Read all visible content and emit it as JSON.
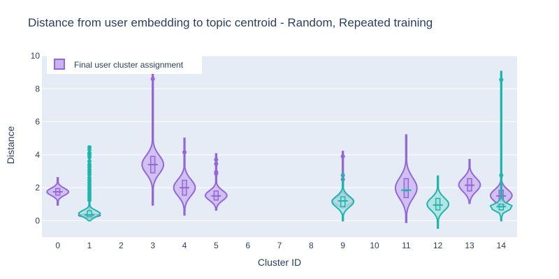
{
  "colors": {
    "plot_bg": "#e5ecf6",
    "grid": "#ffffff",
    "text": "#2a3f5f",
    "purple": "#9467d9",
    "purple_fill": "#c9b3ef",
    "teal": "#1fb5ad",
    "teal_fill": "#a6e0dc"
  },
  "chart_data": {
    "type": "violin",
    "title": "Distance from user embedding to topic centroid - Random, Repeated training",
    "xlabel": "Cluster ID",
    "ylabel": "Distance",
    "categories": [
      "0",
      "1",
      "2",
      "3",
      "4",
      "5",
      "6",
      "7",
      "8",
      "9",
      "10",
      "11",
      "12",
      "13",
      "14"
    ],
    "yticks": [
      0,
      2,
      4,
      6,
      8,
      10
    ],
    "ylim": [
      -1,
      10
    ],
    "grid": true,
    "legend": {
      "label": "Final user cluster assignment",
      "position": "top-left"
    },
    "series": [
      {
        "name": "Final user cluster assignment",
        "color": "purple",
        "violins": [
          {
            "cluster": 0,
            "min": 0.95,
            "q1": 1.55,
            "median": 1.75,
            "q3": 1.95,
            "max": 2.6,
            "outliers": []
          },
          {
            "cluster": 1,
            "min": 0.15,
            "q1": 0.25,
            "median": 0.3,
            "q3": 0.38,
            "max": 0.95,
            "outliers": []
          },
          {
            "cluster": 3,
            "min": 0.95,
            "q1": 2.9,
            "median": 3.4,
            "q3": 3.9,
            "max": 8.9,
            "outliers": [
              8.6
            ]
          },
          {
            "cluster": 4,
            "min": 0.35,
            "q1": 1.55,
            "median": 2.0,
            "q3": 2.45,
            "max": 5.0,
            "outliers": [
              4.15
            ]
          },
          {
            "cluster": 5,
            "min": 0.65,
            "q1": 1.25,
            "median": 1.5,
            "q3": 1.8,
            "max": 4.05,
            "outliers": [
              3.7,
              3.45,
              2.95,
              2.85
            ]
          },
          {
            "cluster": 9,
            "min": 0.8,
            "q1": 1.0,
            "median": 1.2,
            "q3": 1.4,
            "max": 4.2,
            "outliers": [
              3.9,
              2.75,
              2.5
            ]
          },
          {
            "cluster": 11,
            "min": -0.1,
            "q1": 1.4,
            "median": 1.85,
            "q3": 2.55,
            "max": 5.2,
            "outliers": []
          },
          {
            "cluster": 13,
            "min": 1.05,
            "q1": 1.8,
            "median": 2.15,
            "q3": 2.55,
            "max": 3.7,
            "outliers": []
          },
          {
            "cluster": 14,
            "min": 0.75,
            "q1": 1.2,
            "median": 1.5,
            "q3": 1.85,
            "max": 2.55,
            "outliers": []
          }
        ]
      },
      {
        "name": "",
        "color": "teal",
        "violins": [
          {
            "cluster": 1,
            "min": 0.0,
            "q1": 0.25,
            "median": 0.35,
            "q3": 0.6,
            "max": 4.5,
            "outliers": [
              4.45,
              4.3,
              4.1,
              4.0,
              3.85,
              3.6,
              3.4,
              3.25,
              3.1,
              2.95,
              2.8,
              2.6,
              2.45,
              2.3,
              2.15,
              2.0,
              1.85,
              1.7,
              1.55,
              1.4,
              1.25
            ]
          },
          {
            "cluster": 9,
            "min": 0.0,
            "q1": 0.85,
            "median": 1.2,
            "q3": 1.45,
            "max": 2.9,
            "outliers": []
          },
          {
            "cluster": 11,
            "min": 1.85,
            "q1": 1.85,
            "median": 1.85,
            "q3": 1.85,
            "max": 1.85,
            "outliers": []
          },
          {
            "cluster": 12,
            "min": -0.45,
            "q1": 0.65,
            "median": 0.95,
            "q3": 1.35,
            "max": 2.7,
            "outliers": []
          },
          {
            "cluster": 14,
            "min": 0.0,
            "q1": 0.65,
            "median": 0.85,
            "q3": 1.0,
            "max": 9.05,
            "outliers": [
              8.55,
              2.75
            ]
          }
        ]
      }
    ]
  }
}
